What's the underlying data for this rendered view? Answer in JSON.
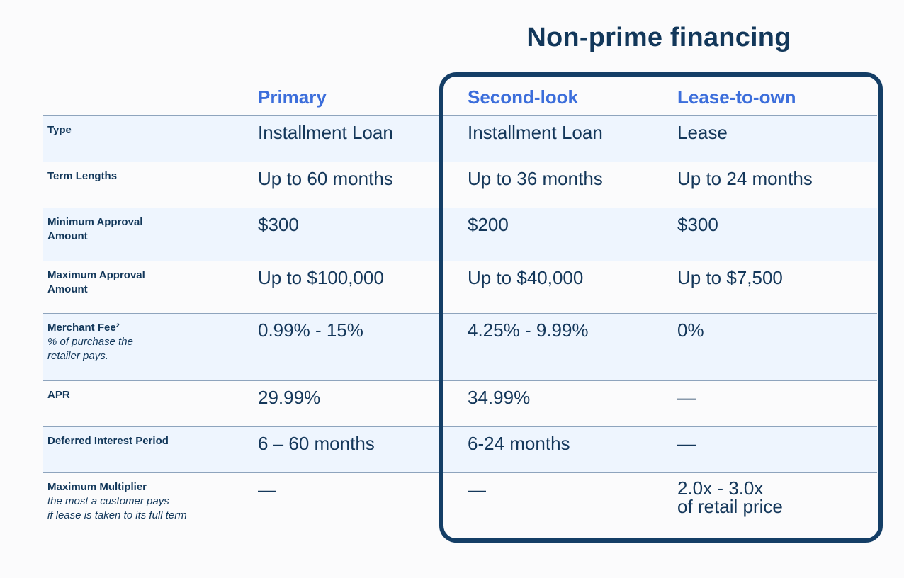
{
  "title": "Non-prime financing",
  "columns": [
    "Primary",
    "Second-look",
    "Lease-to-own"
  ],
  "rows": [
    {
      "label": "Type",
      "sub": "",
      "values": [
        "Installment Loan",
        "Installment Loan",
        "Lease"
      ]
    },
    {
      "label": "Term Lengths",
      "sub": "",
      "values": [
        "Up to 60 months",
        "Up to 36 months",
        "Up to 24 months"
      ]
    },
    {
      "label": "Minimum Approval\nAmount",
      "sub": "",
      "values": [
        "$300",
        "$200",
        "$300"
      ]
    },
    {
      "label": "Maximum Approval\nAmount",
      "sub": "",
      "values": [
        "Up to $100,000",
        "Up to $40,000",
        "Up to $7,500"
      ]
    },
    {
      "label": "Merchant Fee²",
      "sub": "% of purchase the\nretailer pays.",
      "values": [
        "0.99% - 15%",
        "4.25% - 9.99%",
        "0%"
      ]
    },
    {
      "label": "APR",
      "sub": "",
      "values": [
        "29.99%",
        "34.99%",
        "—"
      ]
    },
    {
      "label": "Deferred Interest Period",
      "sub": "",
      "values": [
        "6 – 60 months",
        "6-24 months",
        "—"
      ]
    },
    {
      "label": "Maximum Multiplier",
      "sub": "the most a customer pays\nif lease is taken to its full term",
      "values": [
        "—",
        "—",
        "2.0x - 3.0x\nof retail price"
      ]
    }
  ]
}
